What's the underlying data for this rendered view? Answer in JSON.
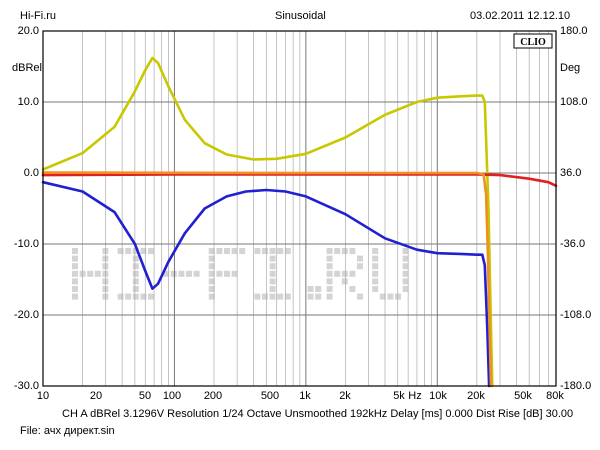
{
  "header": {
    "left": "Hi-Fi.ru",
    "center": "Sinusoidal",
    "right": "03.02.2011 12.12.10"
  },
  "brand": "CLIO",
  "watermark": "HI-FI.RU",
  "left_axis_unit": "dBRel",
  "right_axis_unit": "Deg",
  "footer": {
    "line1": "CH A   dBRel 3.1296V   Resolution 1/24 Octave   Unsmoothed   192kHz   Delay [ms] 0.000   Dist Rise [dB] 30.00",
    "line2": "File: ачх директ.sin"
  },
  "chart_data": {
    "type": "line",
    "xscale": "log",
    "xlim": [
      10,
      80000
    ],
    "ylim": [
      -30,
      20
    ],
    "y2lim": [
      -180,
      180
    ],
    "grid": true,
    "x_ticks": [
      "10",
      "20",
      "50",
      "100",
      "200",
      "500",
      "1k",
      "2k",
      "5k",
      "Hz",
      "10k",
      "20k",
      "50k",
      "80k"
    ],
    "y_ticks": [
      "20.0",
      "10.0",
      "0.0",
      "-10.0",
      "-20.0",
      "-30.0"
    ],
    "y2_ticks": [
      "180.0",
      "108.0",
      "36.0",
      "-36.0",
      "-108.0",
      "-180.0"
    ],
    "series": [
      {
        "color": "#c8c800",
        "points": [
          [
            10,
            0.5
          ],
          [
            20,
            2.8
          ],
          [
            35,
            6.5
          ],
          [
            50,
            11.5
          ],
          [
            60,
            14.5
          ],
          [
            68,
            16.2
          ],
          [
            75,
            15.5
          ],
          [
            90,
            12.2
          ],
          [
            120,
            7.5
          ],
          [
            170,
            4.2
          ],
          [
            250,
            2.6
          ],
          [
            400,
            1.9
          ],
          [
            600,
            2.0
          ],
          [
            1000,
            2.7
          ],
          [
            2000,
            5.0
          ],
          [
            4000,
            8.2
          ],
          [
            7000,
            10.0
          ],
          [
            10000,
            10.6
          ],
          [
            15000,
            10.8
          ],
          [
            20000,
            10.9
          ],
          [
            22000,
            10.9
          ],
          [
            23000,
            10.0
          ],
          [
            24500,
            -5
          ],
          [
            25500,
            -20
          ],
          [
            26200,
            -30
          ]
        ]
      },
      {
        "color": "#2020d0",
        "points": [
          [
            10,
            -1.3
          ],
          [
            20,
            -2.6
          ],
          [
            35,
            -5.5
          ],
          [
            50,
            -10
          ],
          [
            60,
            -13.8
          ],
          [
            68,
            -16.3
          ],
          [
            75,
            -15.6
          ],
          [
            90,
            -12.5
          ],
          [
            120,
            -8.5
          ],
          [
            170,
            -5.0
          ],
          [
            250,
            -3.3
          ],
          [
            350,
            -2.6
          ],
          [
            500,
            -2.4
          ],
          [
            700,
            -2.6
          ],
          [
            1000,
            -3.3
          ],
          [
            2000,
            -5.8
          ],
          [
            4000,
            -9.2
          ],
          [
            7000,
            -10.8
          ],
          [
            10000,
            -11.3
          ],
          [
            15000,
            -11.4
          ],
          [
            20000,
            -11.5
          ],
          [
            22000,
            -11.5
          ],
          [
            23000,
            -13
          ],
          [
            24000,
            -22
          ],
          [
            24800,
            -30
          ]
        ]
      },
      {
        "color": "#e02020",
        "points": [
          [
            10,
            -0.3
          ],
          [
            100,
            -0.2
          ],
          [
            1000,
            -0.2
          ],
          [
            10000,
            -0.2
          ],
          [
            20000,
            -0.2
          ],
          [
            30000,
            -0.3
          ],
          [
            50000,
            -0.8
          ],
          [
            70000,
            -1.3
          ],
          [
            80000,
            -1.8
          ]
        ]
      },
      {
        "color": "#f09020",
        "points": [
          [
            10,
            0.05
          ],
          [
            1000,
            0.0
          ],
          [
            10000,
            0.0
          ],
          [
            20000,
            0.0
          ],
          [
            22500,
            -0.2
          ],
          [
            23500,
            -3
          ],
          [
            24300,
            -12
          ],
          [
            25000,
            -22
          ],
          [
            25600,
            -30
          ]
        ]
      }
    ]
  }
}
